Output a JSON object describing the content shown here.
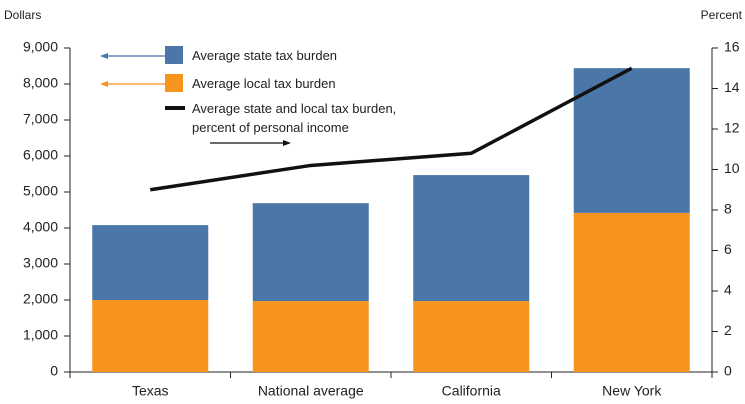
{
  "chart_data": {
    "type": "bar",
    "ylabel": "Dollars",
    "y2label": "Percent",
    "categories": [
      "Texas",
      "National average",
      "California",
      "New York"
    ],
    "series": [
      {
        "name": "Average state tax burden",
        "type": "bar",
        "color": "#4a76a8",
        "values": [
          2080,
          2720,
          3500,
          4020
        ]
      },
      {
        "name": "Average local tax burden",
        "type": "bar",
        "color": "#f7941d",
        "values": [
          2000,
          1970,
          1970,
          4420
        ]
      },
      {
        "name": "Average state and local tax burden, percent of personal income",
        "type": "line",
        "axis": "y2",
        "color": "#111111",
        "values": [
          9.0,
          10.2,
          10.8,
          15.0
        ]
      }
    ],
    "stacked": true,
    "ylim": [
      0,
      9000
    ],
    "yticks": [
      0,
      {
        "value": 1000,
        "label": "1,000"
      },
      {
        "value": 2000,
        "label": "2,000"
      },
      {
        "value": 3000,
        "label": "3,000"
      },
      {
        "value": 4000,
        "label": "4,000"
      },
      {
        "value": 5000,
        "label": "5,000"
      },
      {
        "value": 6000,
        "label": "6,000"
      },
      {
        "value": 7000,
        "label": "7,000"
      },
      {
        "value": 8000,
        "label": "8,000"
      },
      {
        "value": 9000,
        "label": "9,000"
      }
    ],
    "y2lim": [
      0,
      16
    ],
    "y2ticks": [
      0,
      2,
      4,
      6,
      8,
      10,
      12,
      14,
      16
    ],
    "grid": false
  }
}
